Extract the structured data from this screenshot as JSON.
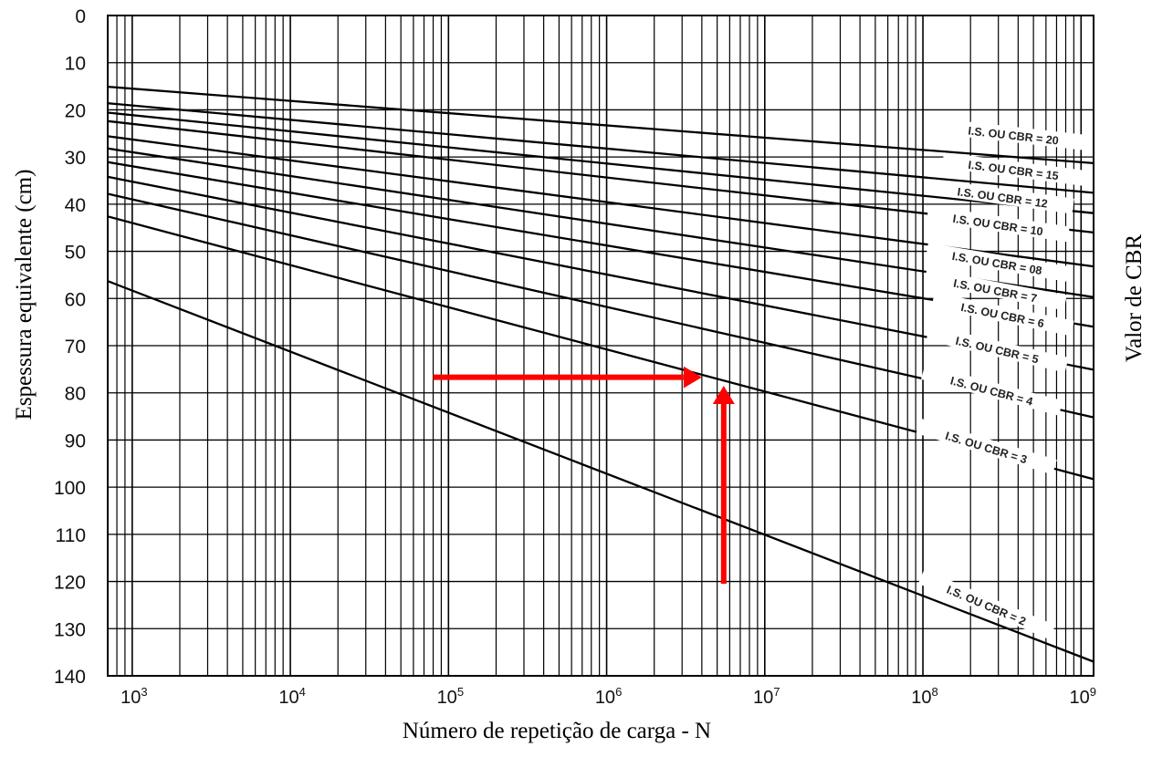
{
  "chart_data": {
    "type": "line",
    "title": "",
    "xlabel": "Número de repetição de carga - N",
    "ylabel": "Espessura equivalente (cm)",
    "right_label": "Valor de CBR",
    "x_scale": "log",
    "xlim": [
      700,
      1200000000
    ],
    "ylim": [
      140,
      0
    ],
    "y_inverted": true,
    "grid": true,
    "x_ticks": [
      {
        "base": "10",
        "exp": "3",
        "value": 1000
      },
      {
        "base": "10",
        "exp": "4",
        "value": 10000
      },
      {
        "base": "10",
        "exp": "5",
        "value": 100000
      },
      {
        "base": "10",
        "exp": "6",
        "value": 1000000
      },
      {
        "base": "10",
        "exp": "7",
        "value": 10000000
      },
      {
        "base": "10",
        "exp": "8",
        "value": 100000000
      },
      {
        "base": "10",
        "exp": "9",
        "value": 1000000000
      }
    ],
    "y_ticks": [
      "0",
      "10",
      "20",
      "30",
      "40",
      "50",
      "60",
      "70",
      "80",
      "90",
      "100",
      "110",
      "120",
      "130",
      "140"
    ],
    "series": [
      {
        "name": "I.S. OU CBR = 20",
        "label": "I.S. OU CBR = 20",
        "x": [
          700,
          1200000000
        ],
        "y": [
          15.1,
          31.3
        ]
      },
      {
        "name": "I.S. OU CBR = 15",
        "label": "I.S. OU CBR = 15",
        "x": [
          700,
          1200000000
        ],
        "y": [
          18.6,
          37.6
        ]
      },
      {
        "name": "I.S. OU CBR = 12",
        "label": "I.S. OU CBR = 12",
        "x": [
          700,
          1200000000
        ],
        "y": [
          20.6,
          41.9
        ]
      },
      {
        "name": "I.S. OU CBR = 10",
        "label": "I.S. OU CBR = 10",
        "x": [
          700,
          1200000000
        ],
        "y": [
          22.4,
          46.0
        ]
      },
      {
        "name": "I.S. OU CBR = 08",
        "label": "I.S. OU CBR = 08",
        "x": [
          700,
          1200000000
        ],
        "y": [
          25.6,
          53.2
        ]
      },
      {
        "name": "I.S. OU CBR = 7",
        "label": "I.S. OU CBR = 7",
        "x": [
          700,
          1200000000
        ],
        "y": [
          28.2,
          59.7
        ]
      },
      {
        "name": "I.S. OU CBR = 6",
        "label": "I.S. OU CBR = 6",
        "x": [
          700,
          1200000000
        ],
        "y": [
          31.1,
          66.0
        ]
      },
      {
        "name": "I.S. OU CBR = 5",
        "label": "I.S. OU CBR = 5",
        "x": [
          700,
          1200000000
        ],
        "y": [
          34.2,
          75.1
        ]
      },
      {
        "name": "I.S. OU CBR = 4",
        "label": "I.S. OU CBR = 4",
        "x": [
          700,
          1200000000
        ],
        "y": [
          37.8,
          85.2
        ]
      },
      {
        "name": "I.S. OU CBR = 3",
        "label": "I.S. OU CBR = 3",
        "x": [
          700,
          1200000000
        ],
        "y": [
          42.6,
          98.3
        ]
      },
      {
        "name": "I.S. OU CBR = 2",
        "label": "I.S. OU CBR = 2",
        "x": [
          700,
          1200000000
        ],
        "y": [
          56.3,
          137.0
        ]
      }
    ],
    "arrows": [
      {
        "from": [
          80000,
          76.7
        ],
        "to": [
          4000000,
          76.7
        ],
        "color": "#ff0000"
      },
      {
        "from": [
          5500000,
          120.5
        ],
        "to": [
          5500000,
          78.5
        ],
        "color": "#ff0000"
      }
    ]
  }
}
